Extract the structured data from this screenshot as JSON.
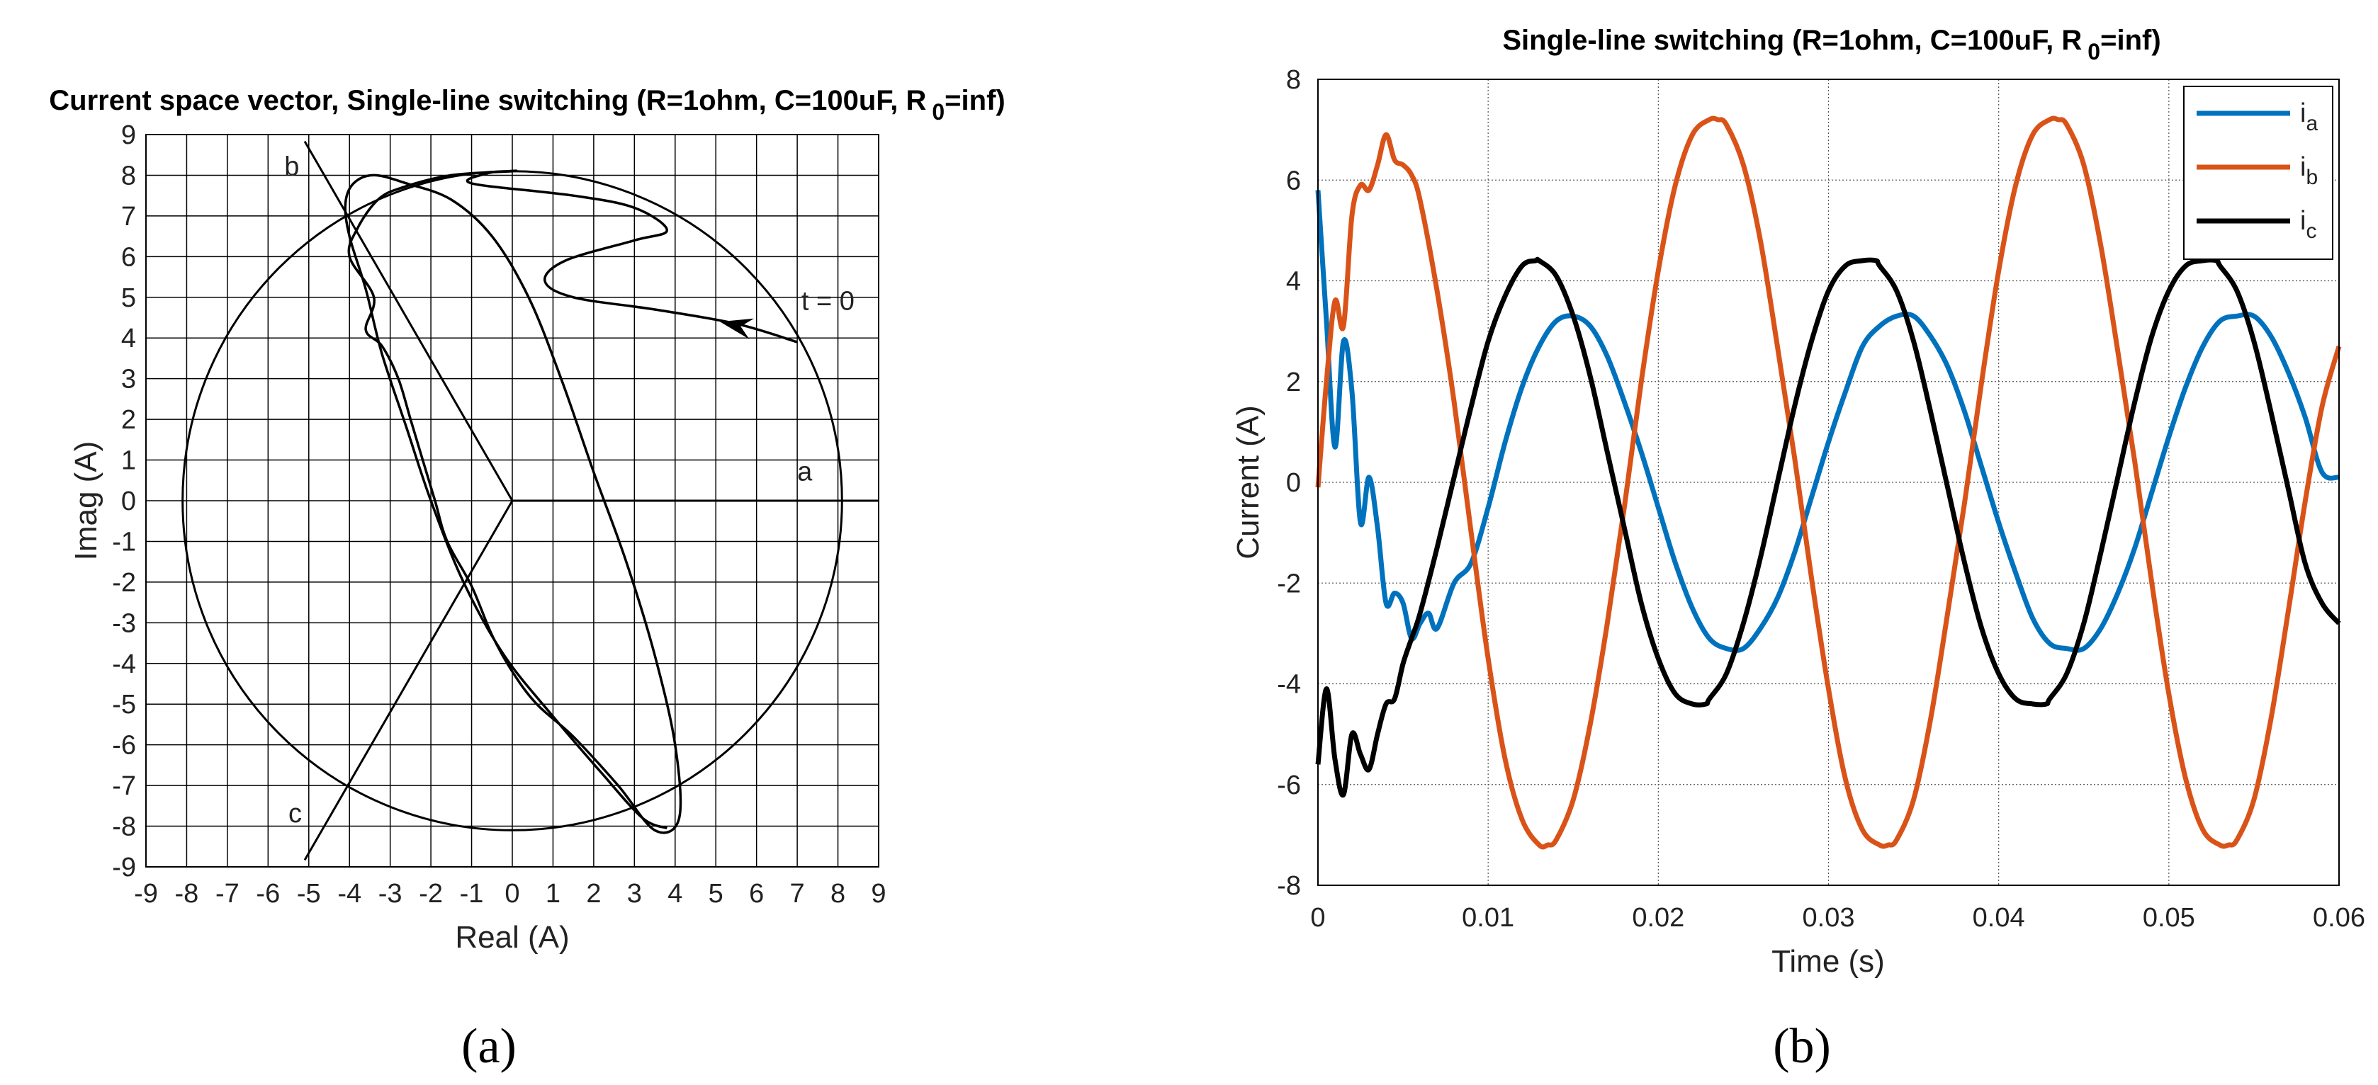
{
  "chart_data": [
    {
      "type": "line",
      "panel_label": "(a)",
      "title_main": "Current space vector, Single-line switching (R=1ohm, C=100uF, R",
      "title_sub": "0",
      "title_tail": "=inf)",
      "xlabel": "Real   (A)",
      "ylabel": "Imag   (A)",
      "xlim": [
        -9,
        9
      ],
      "ylim": [
        -9,
        9
      ],
      "xticks": [
        -9,
        -8,
        -7,
        -6,
        -5,
        -4,
        -3,
        -2,
        -1,
        0,
        1,
        2,
        3,
        4,
        5,
        6,
        7,
        8,
        9
      ],
      "yticks": [
        9,
        8,
        7,
        6,
        5,
        4,
        3,
        2,
        1,
        0,
        -1,
        -2,
        -3,
        -4,
        -5,
        -6,
        -7,
        -8,
        -9
      ],
      "grid": true,
      "circle_radius": 8.1,
      "phase_axes": [
        {
          "label": "a",
          "angle_deg": 0,
          "length": 9,
          "label_pos": [
            7.0,
            0.5
          ]
        },
        {
          "label": "b",
          "angle_deg": 120,
          "length": 10.2,
          "label_pos": [
            -5.6,
            8.0
          ]
        },
        {
          "label": "c",
          "angle_deg": 240,
          "length": 10.2,
          "label_pos": [
            -5.5,
            -7.9
          ]
        }
      ],
      "annotation": {
        "text": "t = 0",
        "x": 7.0,
        "y": 3.9,
        "label_x": 7.1,
        "label_y": 4.9,
        "arrow_to": [
          5.1,
          4.4
        ]
      },
      "trajectory": [
        [
          7.0,
          3.9
        ],
        [
          5.5,
          4.35
        ],
        [
          3.5,
          4.7
        ],
        [
          1.5,
          5.0
        ],
        [
          0.8,
          5.4
        ],
        [
          1.3,
          5.9
        ],
        [
          3.0,
          6.4
        ],
        [
          3.8,
          6.65
        ],
        [
          3.0,
          7.2
        ],
        [
          1.5,
          7.5
        ],
        [
          -1.0,
          7.8
        ],
        [
          -0.6,
          8.05
        ],
        [
          -0.1,
          8.1
        ],
        [
          0.0,
          8.1
        ],
        [
          -1.5,
          8.0
        ],
        [
          -2.7,
          7.7
        ],
        [
          -3.3,
          7.4
        ],
        [
          -3.8,
          6.7
        ],
        [
          -4.0,
          6.0
        ],
        [
          -3.4,
          5.0
        ],
        [
          -3.6,
          4.2
        ],
        [
          -3.2,
          3.8
        ],
        [
          -2.8,
          3.0
        ],
        [
          -2.5,
          2.0
        ],
        [
          -2.2,
          1.0
        ],
        [
          -1.9,
          0.0
        ],
        [
          -1.6,
          -1.0
        ],
        [
          -1.0,
          -2.1
        ],
        [
          -0.5,
          -3.3
        ],
        [
          0.0,
          -4.2
        ],
        [
          0.6,
          -5.0
        ],
        [
          1.5,
          -5.8
        ],
        [
          2.6,
          -7.0
        ],
        [
          3.5,
          -8.1
        ],
        [
          4.1,
          -7.8
        ],
        [
          4.0,
          -6.0
        ],
        [
          3.5,
          -3.8
        ],
        [
          2.8,
          -1.5
        ],
        [
          2.0,
          0.7
        ],
        [
          1.2,
          3.0
        ],
        [
          0.4,
          5.0
        ],
        [
          -0.5,
          6.5
        ],
        [
          -1.5,
          7.4
        ],
        [
          -2.6,
          7.8
        ],
        [
          -3.4,
          8.0
        ],
        [
          -3.9,
          7.8
        ],
        [
          -4.1,
          7.3
        ],
        [
          -4.0,
          6.5
        ],
        [
          -3.6,
          5.2
        ],
        [
          -3.2,
          3.6
        ],
        [
          -2.6,
          1.8
        ],
        [
          -2.0,
          0.0
        ],
        [
          -1.2,
          -2.0
        ],
        [
          -0.2,
          -3.8
        ],
        [
          1.0,
          -5.3
        ],
        [
          2.2,
          -6.7
        ],
        [
          3.2,
          -7.8
        ],
        [
          3.8,
          -8.05
        ]
      ]
    },
    {
      "type": "line",
      "panel_label": "(b)",
      "title_main": "Single-line switching (R=1ohm, C=100uF, R",
      "title_sub": "0",
      "title_tail": "=inf)",
      "xlabel": "Time   (s)",
      "ylabel": "Current   (A)",
      "xlim": [
        0,
        0.06
      ],
      "ylim": [
        -8,
        8
      ],
      "xticks": [
        "0",
        "0.01",
        "0.02",
        "0.03",
        "0.04",
        "0.05",
        "0.06"
      ],
      "yticks": [
        "8",
        "6",
        "4",
        "2",
        "0",
        "-2",
        "-4",
        "-6",
        "-8"
      ],
      "grid": true,
      "legend_position": "top-right",
      "legend": [
        {
          "name": "i",
          "sub": "a",
          "color": "#0072BD"
        },
        {
          "name": "i",
          "sub": "b",
          "color": "#D95319"
        },
        {
          "name": "i",
          "sub": "c",
          "color": "#000000"
        }
      ],
      "series": [
        {
          "key": "ia",
          "color": "#0072BD",
          "x": [
            0,
            0.0005,
            0.001,
            0.0015,
            0.002,
            0.0025,
            0.003,
            0.0035,
            0.004,
            0.0045,
            0.005,
            0.0055,
            0.006,
            0.0065,
            0.007,
            0.008,
            0.009,
            0.01,
            0.011,
            0.012,
            0.013,
            0.014,
            0.015,
            0.016,
            0.017,
            0.018,
            0.019,
            0.02,
            0.021,
            0.022,
            0.023,
            0.024,
            0.025,
            0.026,
            0.027,
            0.028,
            0.029,
            0.03,
            0.031,
            0.032,
            0.033,
            0.034,
            0.035,
            0.036,
            0.037,
            0.038,
            0.039,
            0.04,
            0.041,
            0.042,
            0.043,
            0.044,
            0.045,
            0.046,
            0.047,
            0.048,
            0.049,
            0.05,
            0.051,
            0.052,
            0.053,
            0.054,
            0.055,
            0.056,
            0.057,
            0.058,
            0.059,
            0.06
          ],
          "y": [
            5.8,
            3.2,
            0.7,
            2.8,
            1.8,
            -0.8,
            0.1,
            -0.9,
            -2.4,
            -2.2,
            -2.4,
            -3.1,
            -2.8,
            -2.6,
            -2.9,
            -2.0,
            -1.6,
            -0.5,
            0.8,
            1.9,
            2.7,
            3.2,
            3.3,
            3.1,
            2.5,
            1.6,
            0.6,
            -0.5,
            -1.6,
            -2.5,
            -3.1,
            -3.3,
            -3.3,
            -2.9,
            -2.3,
            -1.4,
            -0.3,
            0.8,
            1.8,
            2.7,
            3.1,
            3.3,
            3.3,
            2.9,
            2.3,
            1.4,
            0.3,
            -0.8,
            -1.8,
            -2.7,
            -3.2,
            -3.3,
            -3.3,
            -2.9,
            -2.2,
            -1.3,
            -0.2,
            0.9,
            1.9,
            2.7,
            3.2,
            3.3,
            3.3,
            2.9,
            2.2,
            1.3,
            0.2,
            0.1
          ]
        },
        {
          "key": "ib",
          "color": "#D95319",
          "x": [
            0,
            0.0005,
            0.001,
            0.0015,
            0.002,
            0.0025,
            0.003,
            0.0035,
            0.004,
            0.0045,
            0.005,
            0.0055,
            0.006,
            0.007,
            0.008,
            0.009,
            0.01,
            0.011,
            0.012,
            0.013,
            0.0135,
            0.014,
            0.015,
            0.016,
            0.017,
            0.018,
            0.019,
            0.02,
            0.021,
            0.022,
            0.023,
            0.0235,
            0.024,
            0.025,
            0.026,
            0.027,
            0.028,
            0.029,
            0.03,
            0.031,
            0.032,
            0.033,
            0.0335,
            0.034,
            0.035,
            0.036,
            0.037,
            0.038,
            0.039,
            0.04,
            0.041,
            0.042,
            0.043,
            0.0435,
            0.044,
            0.045,
            0.046,
            0.047,
            0.048,
            0.049,
            0.05,
            0.051,
            0.052,
            0.053,
            0.0535,
            0.054,
            0.055,
            0.056,
            0.057,
            0.058,
            0.059,
            0.06
          ],
          "y": [
            -0.1,
            2.0,
            3.6,
            3.1,
            5.3,
            5.9,
            5.8,
            6.3,
            6.9,
            6.4,
            6.3,
            6.1,
            5.6,
            3.8,
            1.6,
            -1.0,
            -3.5,
            -5.5,
            -6.7,
            -7.2,
            -7.2,
            -7.1,
            -6.3,
            -4.8,
            -2.8,
            -0.5,
            2.0,
            4.2,
            5.9,
            6.9,
            7.2,
            7.2,
            7.1,
            6.3,
            4.8,
            2.7,
            0.5,
            -1.9,
            -4.1,
            -5.9,
            -6.9,
            -7.2,
            -7.2,
            -7.1,
            -6.3,
            -4.7,
            -2.6,
            -0.4,
            2.0,
            4.2,
            5.9,
            6.9,
            7.2,
            7.2,
            7.1,
            6.3,
            4.7,
            2.6,
            0.4,
            -2.0,
            -4.2,
            -5.9,
            -6.9,
            -7.2,
            -7.2,
            -7.1,
            -6.3,
            -4.7,
            -2.6,
            -0.4,
            1.5,
            2.7
          ]
        },
        {
          "key": "ic",
          "color": "#000000",
          "x": [
            0,
            0.0005,
            0.001,
            0.0015,
            0.002,
            0.0025,
            0.003,
            0.0035,
            0.004,
            0.0045,
            0.005,
            0.0055,
            0.006,
            0.007,
            0.008,
            0.009,
            0.01,
            0.011,
            0.012,
            0.0128,
            0.013,
            0.014,
            0.015,
            0.016,
            0.017,
            0.018,
            0.019,
            0.02,
            0.021,
            0.022,
            0.0228,
            0.023,
            0.024,
            0.025,
            0.026,
            0.027,
            0.028,
            0.029,
            0.03,
            0.031,
            0.032,
            0.0328,
            0.033,
            0.034,
            0.035,
            0.036,
            0.037,
            0.038,
            0.039,
            0.04,
            0.041,
            0.042,
            0.0428,
            0.043,
            0.044,
            0.045,
            0.046,
            0.047,
            0.048,
            0.049,
            0.05,
            0.051,
            0.052,
            0.0528,
            0.053,
            0.054,
            0.055,
            0.056,
            0.057,
            0.058,
            0.059,
            0.06
          ],
          "y": [
            -5.6,
            -4.1,
            -5.5,
            -6.2,
            -5.0,
            -5.4,
            -5.7,
            -5.0,
            -4.4,
            -4.3,
            -3.6,
            -3.1,
            -2.6,
            -1.3,
            0.1,
            1.5,
            2.8,
            3.7,
            4.3,
            4.4,
            4.4,
            4.1,
            3.3,
            2.1,
            0.6,
            -0.9,
            -2.4,
            -3.5,
            -4.2,
            -4.4,
            -4.4,
            -4.3,
            -3.8,
            -2.8,
            -1.5,
            0.0,
            1.5,
            2.8,
            3.8,
            4.3,
            4.4,
            4.4,
            4.3,
            3.8,
            2.8,
            1.4,
            -0.1,
            -1.6,
            -2.9,
            -3.8,
            -4.3,
            -4.4,
            -4.4,
            -4.3,
            -3.8,
            -2.8,
            -1.4,
            0.1,
            1.6,
            2.9,
            3.8,
            4.3,
            4.4,
            4.4,
            4.3,
            3.8,
            2.8,
            1.4,
            -0.1,
            -1.6,
            -2.4,
            -2.8
          ]
        }
      ]
    }
  ]
}
